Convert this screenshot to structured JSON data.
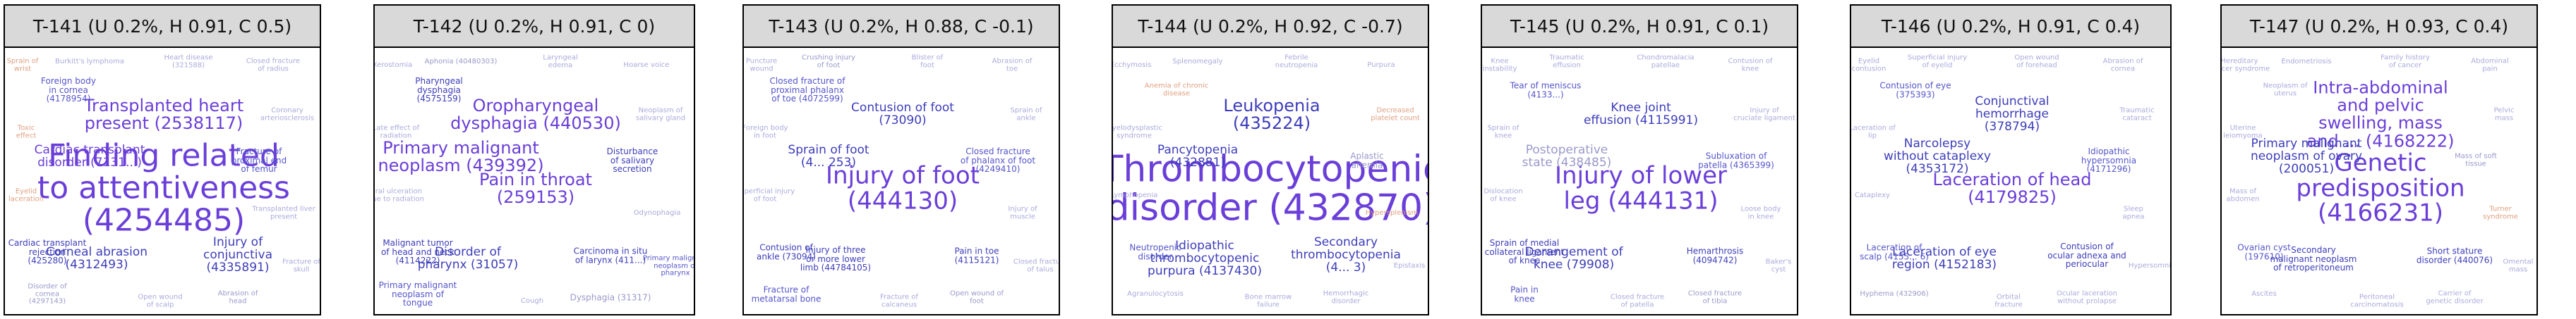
{
  "panels": [
    {
      "title": "T-141 (U 0.2%, H 0.91, C 0.5)",
      "words": [
        {
          "text": "Finding related\nto attentiveness\n(4254485)",
          "level": 6,
          "color": "#6a3fd9"
        },
        {
          "text": "Transplanted heart\npresent (2538117)",
          "level": 4,
          "color": "#6a3fd9"
        },
        {
          "text": "Cardiac transplant\ndisorder (7131...)",
          "level": 3,
          "color": "#6a3fd9"
        },
        {
          "text": "Corneal abrasion\n(4312493)",
          "level": 3,
          "color": "#3d3dbb"
        },
        {
          "text": "Injury of\nconjunctiva\n(4335891)",
          "level": 3,
          "color": "#3d3dbb"
        },
        {
          "text": "Cardiac transplant\nrejection\n(425280)",
          "level": 2,
          "color": "#3d3dbb"
        },
        {
          "text": "Fracture of\nproximal end\nof femur",
          "level": 2,
          "color": "#5555cc"
        },
        {
          "text": "Foreign body\nin cornea\n(4178954)",
          "level": 2,
          "color": "#5555cc"
        },
        {
          "text": "Disorder of\ncornea\n(4297143)",
          "level": 1,
          "color": "#9999cc"
        },
        {
          "text": "Abrasion of\nhead",
          "level": 1,
          "color": "#9999cc"
        },
        {
          "text": "Burkitt's lymphoma",
          "level": 1,
          "color": "#aaaadd"
        },
        {
          "text": "Closed fracture\nof radius",
          "level": 1,
          "color": "#aaaadd"
        },
        {
          "text": "Coronary\narteriosclerosis",
          "level": 1,
          "color": "#aaaadd"
        },
        {
          "text": "Toxic\neffect",
          "level": 1,
          "color": "#e0a080"
        },
        {
          "text": "Heart disease\n(321588)",
          "level": 1,
          "color": "#aaaadd"
        },
        {
          "text": "Transplanted liver\npresent",
          "level": 1,
          "color": "#aaaadd"
        },
        {
          "text": "Eyelid\nlaceration",
          "level": 1,
          "color": "#e0a080"
        },
        {
          "text": "Open wound\nof scalp",
          "level": 1,
          "color": "#aaaadd"
        },
        {
          "text": "Fracture of\nskull",
          "level": 1,
          "color": "#aaaadd"
        },
        {
          "text": "Sprain of\nwrist",
          "level": 1,
          "color": "#e0a080"
        }
      ]
    },
    {
      "title": "T-142 (U 0.2%, H 0.91, C 0)",
      "words": [
        {
          "text": "Pain in throat\n(259153)",
          "level": 4,
          "color": "#6a3fd9"
        },
        {
          "text": "Oropharyngeal\ndysphagia (440530)",
          "level": 4,
          "color": "#6a3fd9"
        },
        {
          "text": "Primary malignant\nneoplasm (439392)",
          "level": 4,
          "color": "#6a3fd9"
        },
        {
          "text": "Disorder of\npharynx (31057)",
          "level": 3,
          "color": "#3d3dbb"
        },
        {
          "text": "Carcinoma in situ\nof larynx (411...)",
          "level": 2,
          "color": "#3d3dbb"
        },
        {
          "text": "Malignant tumor\nof head and neck\n(4114222)",
          "level": 2,
          "color": "#3d3dbb"
        },
        {
          "text": "Disturbance\nof salivary\nsecretion",
          "level": 2,
          "color": "#3d3dbb"
        },
        {
          "text": "Pharyngeal\ndysphagia\n(4575159)",
          "level": 2,
          "color": "#3d3dbb"
        },
        {
          "text": "Primary malignant\nneoplasm of\ntongue",
          "level": 2,
          "color": "#5555cc"
        },
        {
          "text": "Dysphagia (31317)",
          "level": 2,
          "color": "#9999cc"
        },
        {
          "text": "Aphonia (40480303)",
          "level": 1,
          "color": "#9999cc"
        },
        {
          "text": "Hoarse voice",
          "level": 1,
          "color": "#aaaadd"
        },
        {
          "text": "Neoplasm of\nsalivary gland",
          "level": 1,
          "color": "#aaaadd"
        },
        {
          "text": "Late effect of\nradiation",
          "level": 1,
          "color": "#aaaadd"
        },
        {
          "text": "Laryngeal\nedema",
          "level": 1,
          "color": "#aaaadd"
        },
        {
          "text": "Odynophagia",
          "level": 1,
          "color": "#aaaadd"
        },
        {
          "text": "Oral ulceration\ndue to radiation",
          "level": 1,
          "color": "#aaaadd"
        },
        {
          "text": "Cough",
          "level": 1,
          "color": "#aaaadd"
        },
        {
          "text": "Primary malignant\nneoplasm of\npharynx",
          "level": 1,
          "color": "#5555cc"
        },
        {
          "text": "Xerostomia",
          "level": 1,
          "color": "#aaaadd"
        }
      ]
    },
    {
      "title": "T-143 (U 0.2%, H 0.88, C -0.1)",
      "words": [
        {
          "text": "Injury of foot\n(444130)",
          "level": 5,
          "color": "#6a3fd9"
        },
        {
          "text": "Contusion of foot\n(73090)",
          "level": 3,
          "color": "#3d3dbb"
        },
        {
          "text": "Sprain of foot\n(4... 253)",
          "level": 3,
          "color": "#3d3dbb"
        },
        {
          "text": "Injury of three\nor more lower\nlimb (44784105)",
          "level": 2,
          "color": "#3d3dbb"
        },
        {
          "text": "Pain in toe\n(4115121)",
          "level": 2,
          "color": "#3d3dbb"
        },
        {
          "text": "Contusion of\nankle (73094)",
          "level": 2,
          "color": "#3d3dbb"
        },
        {
          "text": "Closed fracture\nof phalanx of foot\n(4249410)",
          "level": 2,
          "color": "#5555cc"
        },
        {
          "text": "Closed fracture of\nproximal phalanx\nof toe (4072599)",
          "level": 2,
          "color": "#5555cc"
        },
        {
          "text": "Fracture of\nmetatarsal bone",
          "level": 2,
          "color": "#5555cc"
        },
        {
          "text": "Open wound of\nfoot",
          "level": 1,
          "color": "#9999cc"
        },
        {
          "text": "Crushing injury\nof foot",
          "level": 1,
          "color": "#9999cc"
        },
        {
          "text": "Abrasion of\ntoe",
          "level": 1,
          "color": "#aaaadd"
        },
        {
          "text": "Sprain of\nankle",
          "level": 1,
          "color": "#aaaadd"
        },
        {
          "text": "Foreign body\nin foot",
          "level": 1,
          "color": "#aaaadd"
        },
        {
          "text": "Blister of\nfoot",
          "level": 1,
          "color": "#aaaadd"
        },
        {
          "text": "Injury of\nmuscle",
          "level": 1,
          "color": "#aaaadd"
        },
        {
          "text": "Superficial injury\nof foot",
          "level": 1,
          "color": "#aaaadd"
        },
        {
          "text": "Fracture of\ncalcaneus",
          "level": 1,
          "color": "#aaaadd"
        },
        {
          "text": "Closed fracture\nof talus",
          "level": 1,
          "color": "#aaaadd"
        },
        {
          "text": "Puncture\nwound",
          "level": 1,
          "color": "#aaaadd"
        }
      ]
    },
    {
      "title": "T-144 (U 0.2%, H 0.92, C -0.7)",
      "words": [
        {
          "text": "Thrombocytopenic\ndisorder (432870)",
          "level": 7,
          "color": "#6a3fd9"
        },
        {
          "text": "Leukopenia\n(435224)",
          "level": 4,
          "color": "#3d3dbb"
        },
        {
          "text": "Pancytopenia\n(432881)",
          "level": 3,
          "color": "#3d3dbb"
        },
        {
          "text": "Idiopathic\nthrombocytopenic\npurpura (4137430)",
          "level": 3,
          "color": "#3d3dbb"
        },
        {
          "text": "Secondary\nthrombocytopenia\n(4... 3)",
          "level": 3,
          "color": "#3d3dbb"
        },
        {
          "text": "Neutropenic\ndisorder",
          "level": 2,
          "color": "#5555cc"
        },
        {
          "text": "Aplastic\nanemia",
          "level": 2,
          "color": "#9999cc"
        },
        {
          "text": "Anemia of chronic\ndisease",
          "level": 1,
          "color": "#e0a080"
        },
        {
          "text": "Agranulocytosis",
          "level": 1,
          "color": "#aaaadd"
        },
        {
          "text": "Hemorrhagic\ndisorder",
          "level": 1,
          "color": "#aaaadd"
        },
        {
          "text": "Splenomegaly",
          "level": 1,
          "color": "#aaaadd"
        },
        {
          "text": "Purpura",
          "level": 1,
          "color": "#aaaadd"
        },
        {
          "text": "Decreased\nplatelet count",
          "level": 1,
          "color": "#e0a080"
        },
        {
          "text": "Myelodysplastic\nsyndrome",
          "level": 1,
          "color": "#aaaadd"
        },
        {
          "text": "Febrile\nneutropenia",
          "level": 1,
          "color": "#aaaadd"
        },
        {
          "text": "Hypersplenism",
          "level": 1,
          "color": "#e0a080"
        },
        {
          "text": "Lymphopenia",
          "level": 1,
          "color": "#aaaadd"
        },
        {
          "text": "Bone marrow\nfailure",
          "level": 1,
          "color": "#aaaadd"
        },
        {
          "text": "Epistaxis",
          "level": 1,
          "color": "#aaaadd"
        },
        {
          "text": "Ecchymosis",
          "level": 1,
          "color": "#aaaadd"
        }
      ]
    },
    {
      "title": "T-145 (U 0.2%, H 0.91, C 0.1)",
      "words": [
        {
          "text": "Injury of lower\nleg (444131)",
          "level": 5,
          "color": "#6a3fd9"
        },
        {
          "text": "Knee joint\neffusion (4115991)",
          "level": 3,
          "color": "#3d3dbb"
        },
        {
          "text": "Postoperative\nstate (438485)",
          "level": 3,
          "color": "#9999cc"
        },
        {
          "text": "Derangement of\nknee (79908)",
          "level": 3,
          "color": "#3d3dbb"
        },
        {
          "text": "Hemarthrosis\n(4094742)",
          "level": 2,
          "color": "#3d3dbb"
        },
        {
          "text": "Sprain of medial\ncollateral ligament\nof knee",
          "level": 2,
          "color": "#3d3dbb"
        },
        {
          "text": "Subluxation of\npatella (4365399)",
          "level": 2,
          "color": "#5555cc"
        },
        {
          "text": "Tear of meniscus\n(4133...)",
          "level": 2,
          "color": "#5555cc"
        },
        {
          "text": "Pain in\nknee",
          "level": 2,
          "color": "#5555cc"
        },
        {
          "text": "Closed fracture\nof tibia",
          "level": 1,
          "color": "#9999cc"
        },
        {
          "text": "Traumatic\neffusion",
          "level": 1,
          "color": "#aaaadd"
        },
        {
          "text": "Contusion of\nknee",
          "level": 1,
          "color": "#aaaadd"
        },
        {
          "text": "Injury of\ncruciate ligament",
          "level": 1,
          "color": "#aaaadd"
        },
        {
          "text": "Sprain of\nknee",
          "level": 1,
          "color": "#aaaadd"
        },
        {
          "text": "Chondromalacia\npatellae",
          "level": 1,
          "color": "#aaaadd"
        },
        {
          "text": "Loose body\nin knee",
          "level": 1,
          "color": "#aaaadd"
        },
        {
          "text": "Dislocation\nof knee",
          "level": 1,
          "color": "#aaaadd"
        },
        {
          "text": "Closed fracture\nof patella",
          "level": 1,
          "color": "#aaaadd"
        },
        {
          "text": "Baker's\ncyst",
          "level": 1,
          "color": "#aaaadd"
        },
        {
          "text": "Knee\ninstability",
          "level": 1,
          "color": "#aaaadd"
        }
      ]
    },
    {
      "title": "T-146 (U 0.2%, H 0.91, C 0.4)",
      "words": [
        {
          "text": "Laceration of head\n(4179825)",
          "level": 4,
          "color": "#6a3fd9"
        },
        {
          "text": "Conjunctival\nhemorrhage\n(378794)",
          "level": 3,
          "color": "#3d3dbb"
        },
        {
          "text": "Narcolepsy\nwithout cataplexy\n(4353172)",
          "level": 3,
          "color": "#3d3dbb"
        },
        {
          "text": "Laceration of eye\nregion (4152183)",
          "level": 3,
          "color": "#3d3dbb"
        },
        {
          "text": "Contusion of\nocular adnexa and\nperiocular",
          "level": 2,
          "color": "#3d3dbb"
        },
        {
          "text": "Laceration of\nscalp (4155... 6)",
          "level": 2,
          "color": "#5555cc"
        },
        {
          "text": "Idiopathic\nhypersomnia\n(4171296)",
          "level": 2,
          "color": "#5555cc"
        },
        {
          "text": "Contusion of eye\n(375393)",
          "level": 2,
          "color": "#5555cc"
        },
        {
          "text": "Hyphema (432906)",
          "level": 1,
          "color": "#9999cc"
        },
        {
          "text": "Ocular laceration\nwithout prolapse",
          "level": 1,
          "color": "#aaaadd"
        },
        {
          "text": "Superficial injury\nof eyelid",
          "level": 1,
          "color": "#aaaadd"
        },
        {
          "text": "Abrasion of\ncornea",
          "level": 1,
          "color": "#aaaadd"
        },
        {
          "text": "Traumatic\ncataract",
          "level": 1,
          "color": "#aaaadd"
        },
        {
          "text": "Laceration of\nlip",
          "level": 1,
          "color": "#aaaadd"
        },
        {
          "text": "Open wound\nof forehead",
          "level": 1,
          "color": "#aaaadd"
        },
        {
          "text": "Sleep\napnea",
          "level": 1,
          "color": "#aaaadd"
        },
        {
          "text": "Cataplexy",
          "level": 1,
          "color": "#aaaadd"
        },
        {
          "text": "Orbital\nfracture",
          "level": 1,
          "color": "#aaaadd"
        },
        {
          "text": "Hypersomnia",
          "level": 1,
          "color": "#aaaadd"
        },
        {
          "text": "Eyelid\ncontusion",
          "level": 1,
          "color": "#aaaadd"
        }
      ]
    },
    {
      "title": "T-147 (U 0.2%, H 0.93, C 0.4)",
      "words": [
        {
          "text": "Genetic\npredisposition\n(4166231)",
          "level": 5,
          "color": "#6a3fd9"
        },
        {
          "text": "Intra-abdominal\nand pelvic\nswelling, mass\nand ... (4168222)",
          "level": 4,
          "color": "#6a3fd9"
        },
        {
          "text": "Primary malignant\nneoplasm of ovary\n(200051)",
          "level": 3,
          "color": "#3d3dbb"
        },
        {
          "text": "Secondary\nmalignant neoplasm\nof retroperitoneum",
          "level": 2,
          "color": "#3d3dbb"
        },
        {
          "text": "Short stature\ndisorder (440076)",
          "level": 2,
          "color": "#3d3dbb"
        },
        {
          "text": "Ovarian cyst\n(197610)",
          "level": 2,
          "color": "#5555cc"
        },
        {
          "text": "Mass of soft\ntissue",
          "level": 1,
          "color": "#9999cc"
        },
        {
          "text": "Neoplasm of\nuterus",
          "level": 1,
          "color": "#aaaadd"
        },
        {
          "text": "Ascites",
          "level": 1,
          "color": "#aaaadd"
        },
        {
          "text": "Carrier of\ngenetic disorder",
          "level": 1,
          "color": "#aaaadd"
        },
        {
          "text": "Endometriosis",
          "level": 1,
          "color": "#aaaadd"
        },
        {
          "text": "Abdominal\npain",
          "level": 1,
          "color": "#aaaadd"
        },
        {
          "text": "Pelvic\nmass",
          "level": 1,
          "color": "#aaaadd"
        },
        {
          "text": "Uterine\nleiomyoma",
          "level": 1,
          "color": "#aaaadd"
        },
        {
          "text": "Family history\nof cancer",
          "level": 1,
          "color": "#aaaadd"
        },
        {
          "text": "Turner\nsyndrome",
          "level": 1,
          "color": "#e0a080"
        },
        {
          "text": "Mass of\nabdomen",
          "level": 1,
          "color": "#aaaadd"
        },
        {
          "text": "Peritoneal\ncarcinomatosis",
          "level": 1,
          "color": "#aaaadd"
        },
        {
          "text": "Omental\nmass",
          "level": 1,
          "color": "#aaaadd"
        },
        {
          "text": "Hereditary\ncancer syndrome",
          "level": 1,
          "color": "#aaaadd"
        }
      ]
    }
  ]
}
